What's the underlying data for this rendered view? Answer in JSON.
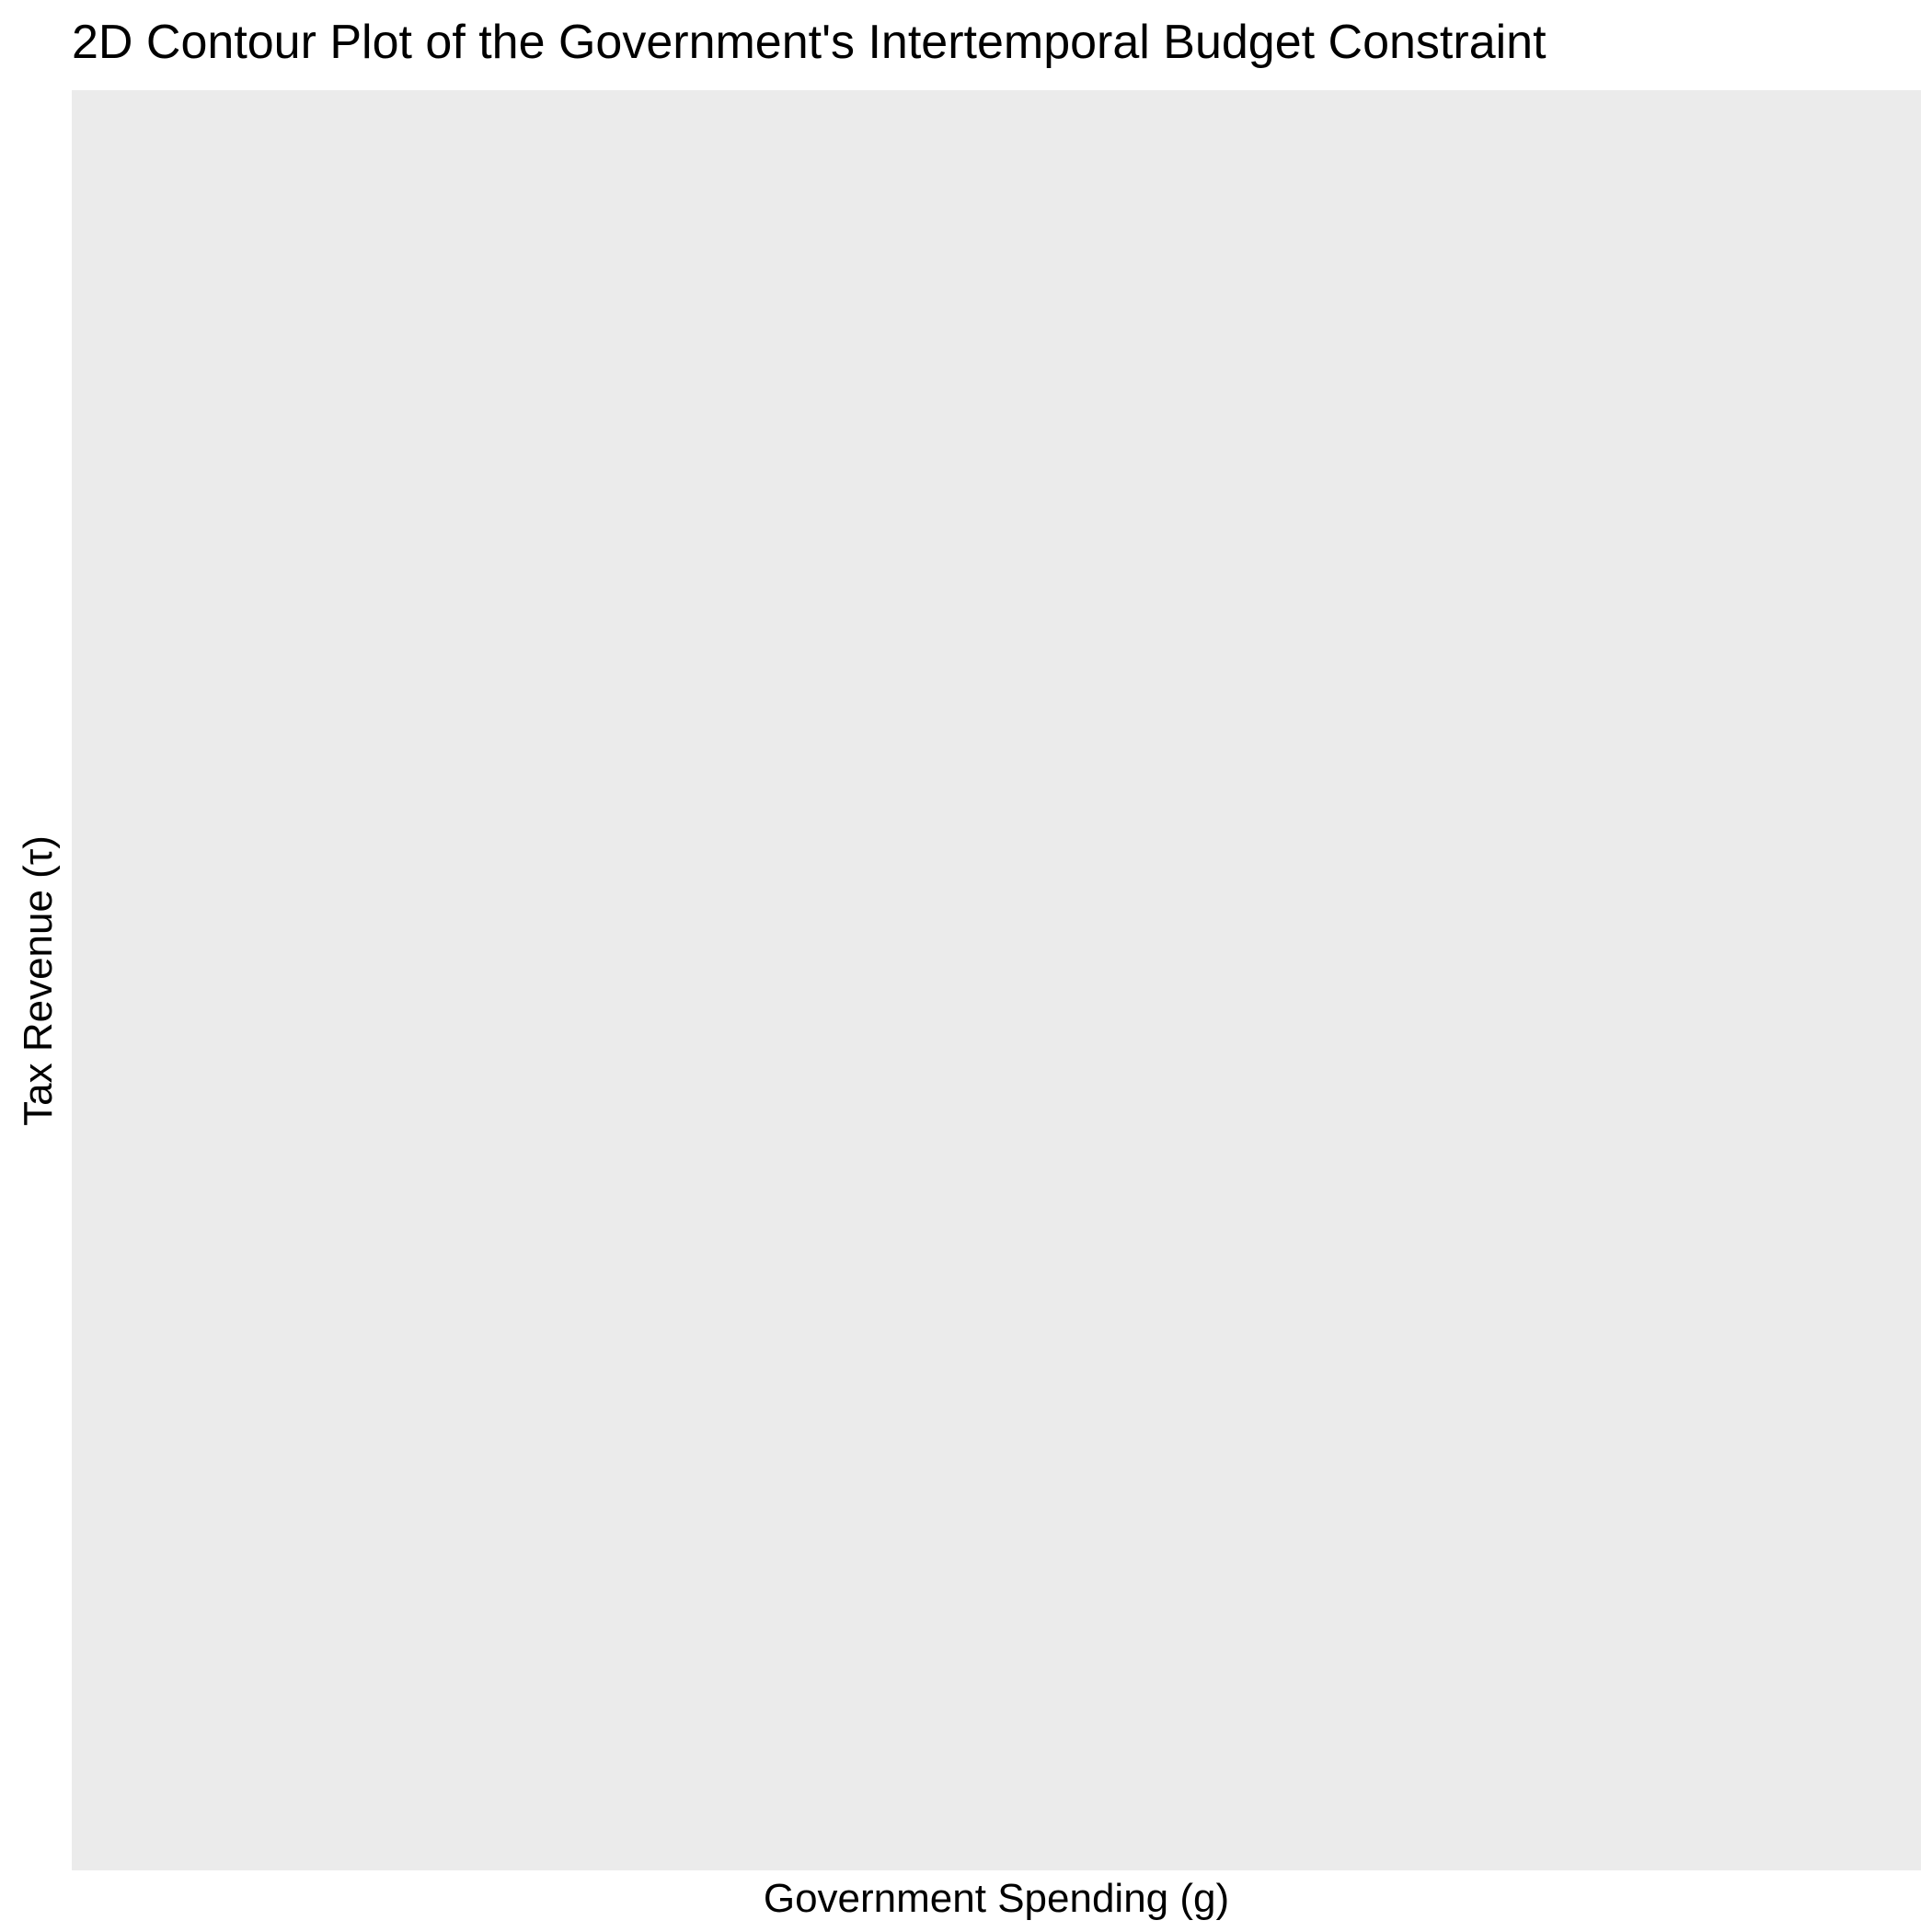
{
  "chart_data": {
    "type": "heatmap",
    "title": "2D Contour Plot of the Government's Intertemporal Budget Constraint",
    "xlabel": "Government Spending (g)",
    "ylabel": "Tax Revenue (τ)",
    "series": [],
    "grid": false,
    "legend": "none",
    "colors": {
      "panel_background": "#ebebeb",
      "page_background": "#ffffff",
      "text": "#000000"
    }
  }
}
